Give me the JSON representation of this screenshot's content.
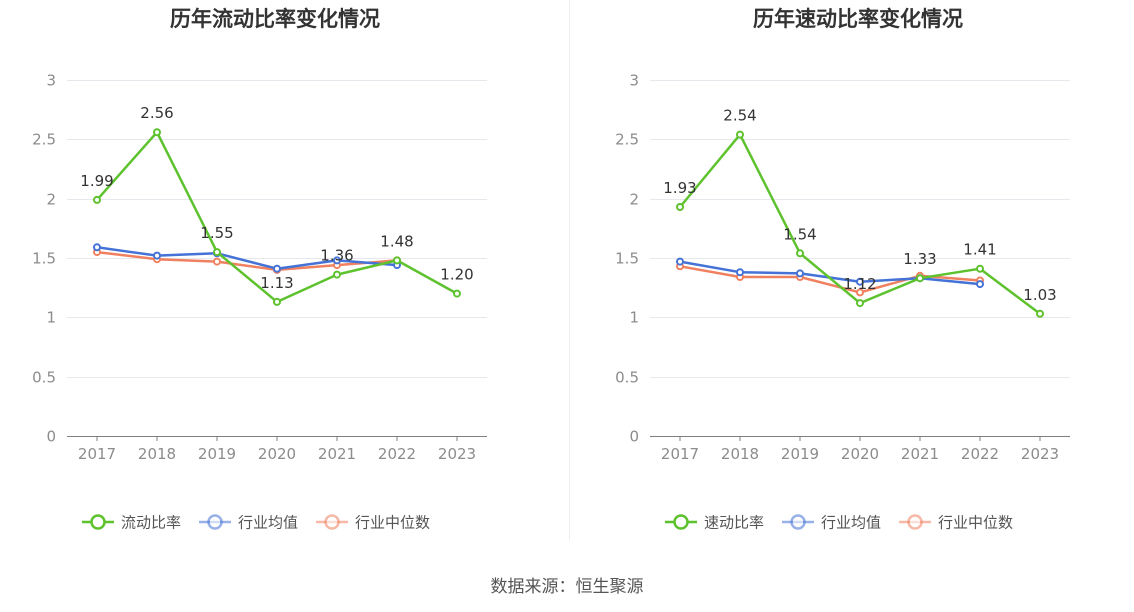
{
  "source_note": "数据来源：恒生聚源",
  "colors": {
    "company": "#5dc22e",
    "industry_avg": "#4572d6",
    "industry_median": "#ef8160",
    "grid": "#e6e8ee",
    "axis": "#7f7f7f",
    "divider": "#eeeeee"
  },
  "chart_data": [
    {
      "type": "line",
      "title": "历年流动比率变化情况",
      "categories": [
        "2017",
        "2018",
        "2019",
        "2020",
        "2021",
        "2022",
        "2023"
      ],
      "ylim": [
        0,
        3
      ],
      "yticks": [
        "0",
        "0.5",
        "1",
        "1.5",
        "2",
        "2.5",
        "3"
      ],
      "grid": true,
      "legend_position": "bottom",
      "series": [
        {
          "name": "流动比率",
          "values": [
            1.99,
            2.56,
            1.55,
            1.13,
            1.36,
            1.48,
            1.2
          ],
          "labels": [
            "1.99",
            "2.56",
            "1.55",
            "1.13",
            "1.36",
            "1.48",
            "1.20"
          ]
        },
        {
          "name": "行业均值",
          "values": [
            1.59,
            1.52,
            1.54,
            1.41,
            1.48,
            1.44,
            null
          ]
        },
        {
          "name": "行业中位数",
          "values": [
            1.55,
            1.49,
            1.47,
            1.4,
            1.44,
            1.48,
            null
          ]
        }
      ]
    },
    {
      "type": "line",
      "title": "历年速动比率变化情况",
      "categories": [
        "2017",
        "2018",
        "2019",
        "2020",
        "2021",
        "2022",
        "2023"
      ],
      "ylim": [
        0,
        3
      ],
      "yticks": [
        "0",
        "0.5",
        "1",
        "1.5",
        "2",
        "2.5",
        "3"
      ],
      "grid": true,
      "legend_position": "bottom",
      "series": [
        {
          "name": "速动比率",
          "values": [
            1.93,
            2.54,
            1.54,
            1.12,
            1.33,
            1.41,
            1.03
          ],
          "labels": [
            "1.93",
            "2.54",
            "1.54",
            "1.12",
            "1.33",
            "1.41",
            "1.03"
          ]
        },
        {
          "name": "行业均值",
          "values": [
            1.47,
            1.38,
            1.37,
            1.3,
            1.33,
            1.28,
            null
          ]
        },
        {
          "name": "行业中位数",
          "values": [
            1.43,
            1.34,
            1.34,
            1.21,
            1.35,
            1.31,
            null
          ]
        }
      ]
    }
  ]
}
